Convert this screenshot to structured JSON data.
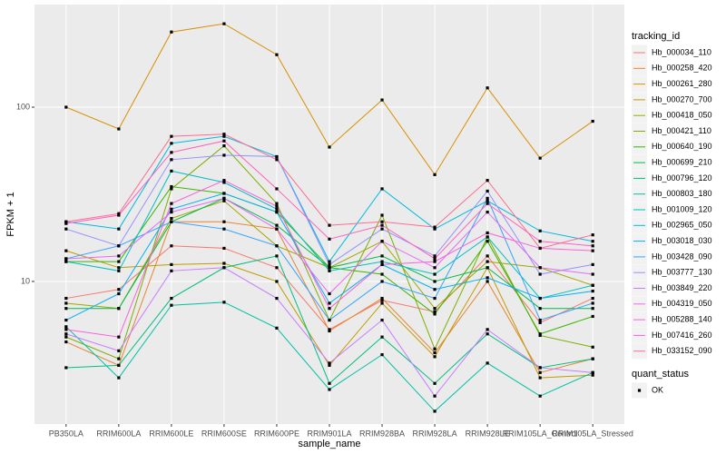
{
  "chart_data": {
    "type": "line",
    "x_label": "sample_name",
    "y_label": "FPKM + 1",
    "log_y": true,
    "grid": true,
    "legend_position": "right",
    "legend_title": "tracking_id",
    "point_color": "#000000",
    "shape_legend": {
      "title": "quant_status",
      "labels": [
        "OK"
      ]
    },
    "categories": [
      "PB350LA",
      "RRIM600LA",
      "RRIM600LE",
      "RRIM600SE",
      "RRIM600PE",
      "RRIM901LA",
      "RRIM928BA",
      "RRIM928LA",
      "RRIM928LE",
      "RRIM105LA_Control",
      "RRIM105LA_Stressed"
    ],
    "ylim": [
      1.52,
      388
    ],
    "yticks": [
      10,
      100
    ],
    "series": [
      {
        "name": "Hb_000034_110",
        "color": "#F8766D",
        "values": [
          8,
          9,
          16,
          15.5,
          12,
          5.3,
          7.8,
          6.7,
          14,
          5.8,
          8
        ]
      },
      {
        "name": "Hb_000258_420",
        "color": "#EA8331",
        "values": [
          4.5,
          3.3,
          22,
          22,
          20,
          5.2,
          8,
          3.9,
          10,
          3,
          3.6
        ]
      },
      {
        "name": "Hb_000261_280",
        "color": "#D89000",
        "values": [
          100,
          75,
          270,
          301,
          200,
          59,
          110,
          41,
          129,
          51,
          83
        ]
      },
      {
        "name": "Hb_000270_700",
        "color": "#C09B00",
        "values": [
          15,
          12,
          12.5,
          12.7,
          10,
          3.3,
          7.5,
          3.7,
          12,
          2.8,
          2.9
        ]
      },
      {
        "name": "Hb_000418_050",
        "color": "#A3A500",
        "values": [
          7.5,
          7,
          23,
          29,
          16,
          12,
          17,
          7,
          13,
          12,
          9.5
        ]
      },
      {
        "name": "Hb_000421_110",
        "color": "#7CAE00",
        "values": [
          4.8,
          3.6,
          34,
          60,
          28,
          6,
          24,
          4.1,
          18,
          4.9,
          4.2
        ]
      },
      {
        "name": "Hb_000640_190",
        "color": "#39B600",
        "values": [
          13,
          13,
          35,
          32,
          25,
          12,
          11,
          6.5,
          17,
          5,
          6.3
        ]
      },
      {
        "name": "Hb_000699_210",
        "color": "#00BB4E",
        "values": [
          7,
          7,
          22,
          30,
          21,
          12,
          14,
          10,
          12,
          7,
          7
        ]
      },
      {
        "name": "Hb_000796_120",
        "color": "#00BF7D",
        "values": [
          3.2,
          3.3,
          8,
          12,
          14,
          2.6,
          4.8,
          2.6,
          5,
          3.2,
          3.6
        ]
      },
      {
        "name": "Hb_000803_180",
        "color": "#00C1A3",
        "values": [
          5.5,
          2.8,
          7.3,
          7.6,
          5.4,
          2.4,
          3.8,
          1.8,
          3.4,
          2.2,
          3
        ]
      },
      {
        "name": "Hb_001009_120",
        "color": "#00BFC4",
        "values": [
          13,
          11.5,
          43,
          37,
          26,
          11.5,
          13,
          11,
          18,
          8,
          9.5
        ]
      },
      {
        "name": "Hb_002965_050",
        "color": "#00BAE0",
        "values": [
          22,
          20,
          62,
          68,
          52,
          13,
          34,
          20,
          29,
          19.5,
          17
        ]
      },
      {
        "name": "Hb_003018_030",
        "color": "#00B0F6",
        "values": [
          6,
          8.5,
          26,
          32,
          25,
          7.5,
          12.5,
          9,
          10.5,
          8,
          8.8
        ]
      },
      {
        "name": "Hb_003428_090",
        "color": "#35A2FF",
        "values": [
          13.5,
          16,
          22,
          20,
          16,
          6,
          10,
          8,
          30,
          6,
          7.5
        ]
      },
      {
        "name": "Hb_003777_130",
        "color": "#9590FF",
        "values": [
          20,
          16,
          50,
          53,
          52,
          12.5,
          20,
          14,
          33,
          11,
          12.5
        ]
      },
      {
        "name": "Hb_003849_220",
        "color": "#C77CFF",
        "values": [
          5,
          4,
          11.5,
          12,
          8,
          3.4,
          6,
          2.2,
          5.3,
          3.2,
          3
        ]
      },
      {
        "name": "Hb_004319_050",
        "color": "#E76BF3",
        "values": [
          13.5,
          14,
          25,
          30,
          20,
          8.5,
          17,
          12,
          25,
          12,
          11
        ]
      },
      {
        "name": "Hb_005288_140",
        "color": "#FA62DB",
        "values": [
          5.3,
          4.8,
          28,
          38,
          27,
          7,
          12.5,
          13,
          19,
          15.5,
          15
        ]
      },
      {
        "name": "Hb_007416_260",
        "color": "#FF62BC",
        "values": [
          21.5,
          24,
          55,
          64,
          34,
          17.5,
          21,
          13.5,
          28,
          17,
          16
        ]
      },
      {
        "name": "Hb_033152_090",
        "color": "#FF6C91",
        "values": [
          22,
          24.5,
          68,
          70,
          50,
          21,
          22,
          20.5,
          38,
          15.5,
          18.5
        ]
      }
    ]
  }
}
